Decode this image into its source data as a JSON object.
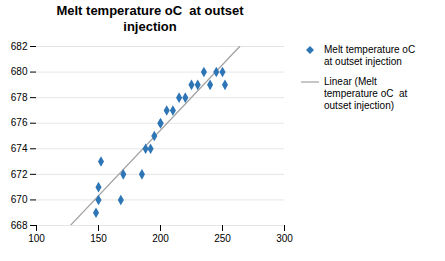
{
  "chart_data": {
    "type": "scatter",
    "title": "Melt temperature oC  at outset\ninjection",
    "series": [
      {
        "name": "Melt temperature oC\nat outset injection",
        "type": "scatter",
        "marker": "diamond",
        "color": "#2e75b6",
        "x": [
          148,
          150,
          150,
          152,
          168,
          170,
          185,
          188,
          192,
          195,
          200,
          200,
          205,
          210,
          215,
          220,
          225,
          230,
          235,
          240,
          245,
          250,
          252
        ],
        "values": [
          669,
          670,
          671,
          673,
          670,
          672,
          672,
          674,
          674,
          675,
          676,
          676,
          677,
          677,
          678,
          678,
          679,
          679,
          680,
          679,
          680,
          680,
          679
        ]
      },
      {
        "name": "Linear (Melt\ntemperature oC  at\noutset injection)",
        "type": "line",
        "line_style": "solid",
        "color": "#a0a0a0",
        "x": [
          127.31,
          263.84
        ],
        "values": [
          668,
          682
        ]
      }
    ],
    "xlim": [
      100,
      300
    ],
    "ylim": [
      668,
      682
    ],
    "xticks": [
      100,
      150,
      200,
      250,
      300
    ],
    "yticks": [
      668,
      670,
      672,
      674,
      676,
      678,
      680,
      682
    ],
    "grid": "y",
    "legend": "right"
  }
}
